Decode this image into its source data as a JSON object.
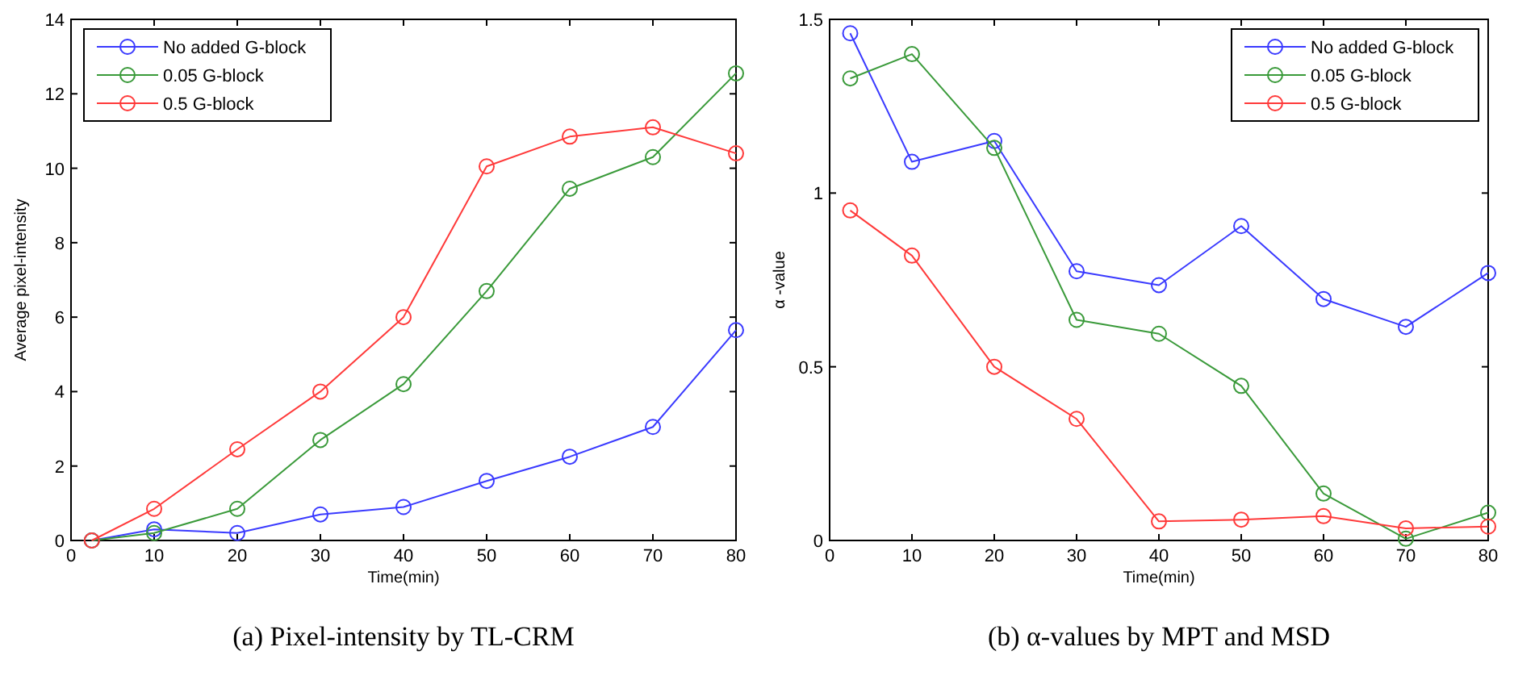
{
  "chart_data": [
    {
      "type": "line",
      "title": "(a) Pixel-intensity by TL-CRM",
      "xlabel": "Time(min)",
      "ylabel": "Average pixel-intensity",
      "x": [
        2.5,
        10,
        20,
        30,
        40,
        50,
        60,
        70,
        80
      ],
      "xlim": [
        0,
        80
      ],
      "xticks": [
        0,
        10,
        20,
        30,
        40,
        50,
        60,
        70,
        80
      ],
      "ylim": [
        0,
        14
      ],
      "yticks": [
        0,
        2,
        4,
        6,
        8,
        10,
        12,
        14
      ],
      "grid": false,
      "legend": "top left",
      "marker": "circle",
      "line_style": "solid",
      "series": [
        {
          "name": "No added G-block",
          "color": "#3a3aff",
          "values": [
            0,
            0.3,
            0.2,
            0.7,
            0.9,
            1.6,
            2.25,
            3.05,
            5.65
          ]
        },
        {
          "name": "0.05 G-block",
          "color": "#3a9a3a",
          "values": [
            0,
            0.2,
            0.85,
            2.7,
            4.2,
            6.7,
            9.45,
            10.3,
            12.55
          ]
        },
        {
          "name": "0.5 G-block",
          "color": "#ff3a3a",
          "values": [
            0,
            0.85,
            2.45,
            4.0,
            6.0,
            10.05,
            10.85,
            11.1,
            10.4
          ]
        }
      ]
    },
    {
      "type": "line",
      "title": "(b) α-values by MPT and MSD",
      "xlabel": "Time(min)",
      "ylabel": "α -value",
      "x": [
        2.5,
        10,
        20,
        30,
        40,
        50,
        60,
        70,
        80
      ],
      "xlim": [
        0,
        80
      ],
      "xticks": [
        0,
        10,
        20,
        30,
        40,
        50,
        60,
        70,
        80
      ],
      "ylim": [
        0,
        1.5
      ],
      "yticks": [
        0,
        0.5,
        1,
        1.5
      ],
      "grid": false,
      "legend": "top right",
      "marker": "circle",
      "line_style": "solid",
      "series": [
        {
          "name": "No added G-block",
          "color": "#3a3aff",
          "values": [
            1.46,
            1.09,
            1.15,
            0.775,
            0.735,
            0.905,
            0.695,
            0.615,
            0.77
          ]
        },
        {
          "name": "0.05 G-block",
          "color": "#3a9a3a",
          "values": [
            1.33,
            1.4,
            1.13,
            0.635,
            0.595,
            0.445,
            0.135,
            0.005,
            0.08
          ]
        },
        {
          "name": "0.5 G-block",
          "color": "#ff3a3a",
          "values": [
            0.95,
            0.82,
            0.5,
            0.35,
            0.055,
            0.06,
            0.07,
            0.035,
            0.04
          ]
        }
      ]
    }
  ]
}
